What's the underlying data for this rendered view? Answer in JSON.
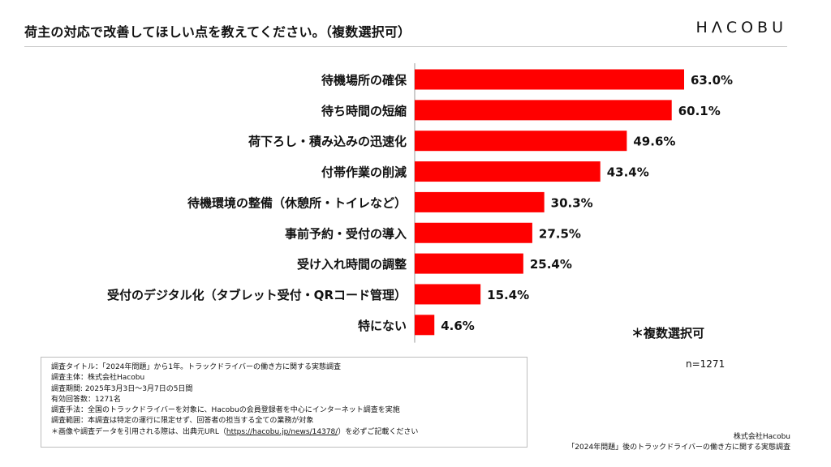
{
  "header": {
    "title": "荷主の対応で改善してほしい点を教えてください。（複数選択可）",
    "logo": "HΛCOBU"
  },
  "chart_data": {
    "type": "bar",
    "orientation": "horizontal",
    "categories": [
      "待機場所の確保",
      "待ち時間の短縮",
      "荷下ろし・積み込みの迅速化",
      "付帯作業の削減",
      "待機環境の整備（休憩所・トイレなど）",
      "事前予約・受付の導入",
      "受け入れ時間の調整",
      "受付のデジタル化（タブレット受付・QRコード管理）",
      "特にない"
    ],
    "values": [
      63.0,
      60.1,
      49.6,
      43.4,
      30.3,
      27.5,
      25.4,
      15.4,
      4.6
    ],
    "value_labels": [
      "63.0%",
      "60.1%",
      "49.6%",
      "43.4%",
      "30.3%",
      "27.5%",
      "25.4%",
      "15.4%",
      "4.6%"
    ],
    "unit": "%",
    "xlim": [
      0,
      70
    ],
    "bar_color": "#ff0000",
    "grid": false,
    "legend": "none",
    "note": "＊複数選択可",
    "n": "n=1271"
  },
  "meta": {
    "lines": [
      "調査タイトル：「2024年問題」から1年。トラックドライバーの働き方に関する実態調査",
      "調査主体：株式会社Hacobu",
      "調査期間: 2025年3月3日〜3月7日の5日間",
      "有効回答数：1271名",
      "調査手法：全国のトラックドライバーを対象に、Hacobuの会員登録者を中心にインターネット調査を実施",
      "調査範囲：本調査は特定の運行に限定せず、回答者の担当する全ての業務が対象"
    ],
    "citation_prefix": "＊画像や調査データを引用される際は、出典元URL（",
    "citation_url": "https://hacobu.jp/news/14378/",
    "citation_suffix": "）を必ずご記載ください"
  },
  "footer": {
    "company": "株式会社Hacobu",
    "report": "「2024年問題」後のトラックドライバーの働き方に関する実態調査"
  }
}
